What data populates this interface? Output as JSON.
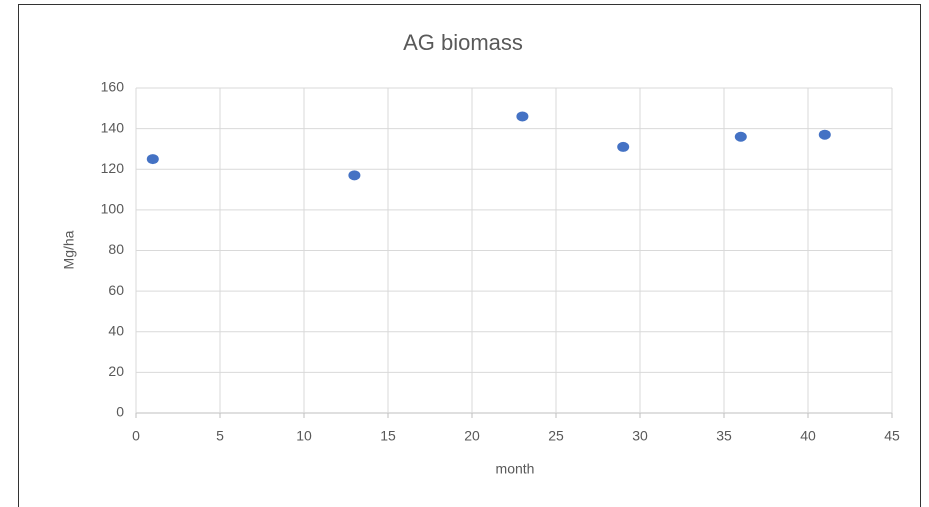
{
  "chart_data": {
    "type": "scatter",
    "title": "AG biomass",
    "x_label": "month",
    "y_label": "Mg/ha",
    "x": [
      1,
      13,
      23,
      29,
      36,
      41
    ],
    "values": [
      125,
      117,
      146,
      131,
      136,
      137
    ],
    "color": "#4472c4",
    "xlim": [
      0,
      45
    ],
    "xticks": [
      0,
      5,
      10,
      15,
      20,
      25,
      30,
      35,
      40,
      45
    ],
    "ylim": [
      0,
      160
    ],
    "yticks": [
      0,
      20,
      40,
      60,
      80,
      100,
      120,
      140,
      160
    ],
    "grid": true
  }
}
